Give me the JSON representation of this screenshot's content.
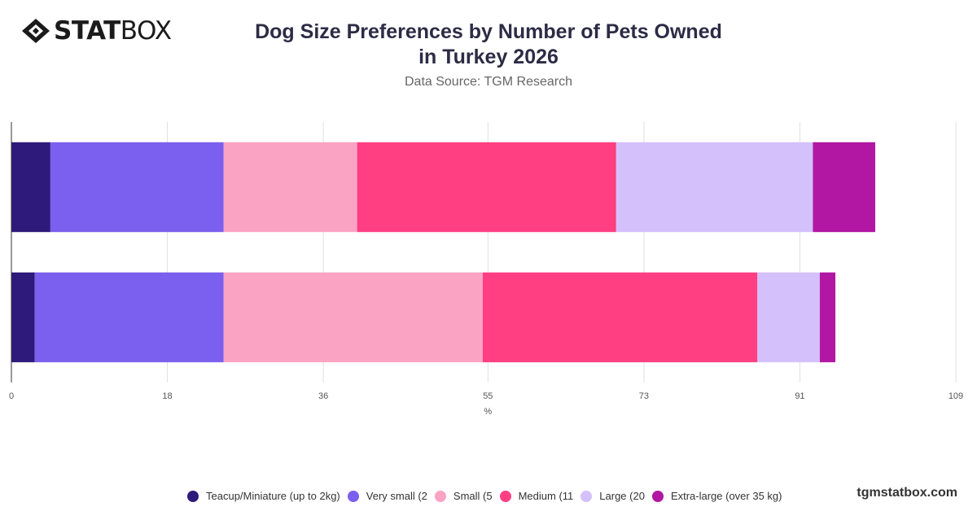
{
  "brand": {
    "logo_bold": "STAT",
    "logo_light": "BOX"
  },
  "footer": "tgmstatbox.com",
  "colors": [
    "#2d1a7a",
    "#7b5fee",
    "#fba3c2",
    "#ff3f82",
    "#d4c0fa",
    "#b117a2"
  ],
  "chart_data": {
    "type": "bar",
    "orientation": "horizontal",
    "stacked": true,
    "title": "Dog Size Preferences by Number of Pets Owned in Turkey 2026",
    "subtitle": "Data Source: TGM Research",
    "xlabel": "%",
    "ylabel": "",
    "xlim": [
      0,
      109
    ],
    "xticks": [
      "0",
      "18",
      "36",
      "55",
      "73",
      "91",
      "109"
    ],
    "categories": [
      "",
      ""
    ],
    "series": [
      {
        "name": "Teacup/Miniature (up to 2kg)",
        "values": [
          4.5,
          2.7
        ]
      },
      {
        "name": "Very small (2",
        "values": [
          20,
          21.8
        ]
      },
      {
        "name": "Small (5",
        "values": [
          15.4,
          29.9
        ]
      },
      {
        "name": "Medium (11",
        "values": [
          29.9,
          31.7
        ]
      },
      {
        "name": "Large (20",
        "values": [
          22.7,
          7.2
        ]
      },
      {
        "name": "Extra-large (over 35 kg)",
        "values": [
          7.2,
          1.8
        ]
      }
    ],
    "grid": true,
    "legend": "bottom"
  }
}
